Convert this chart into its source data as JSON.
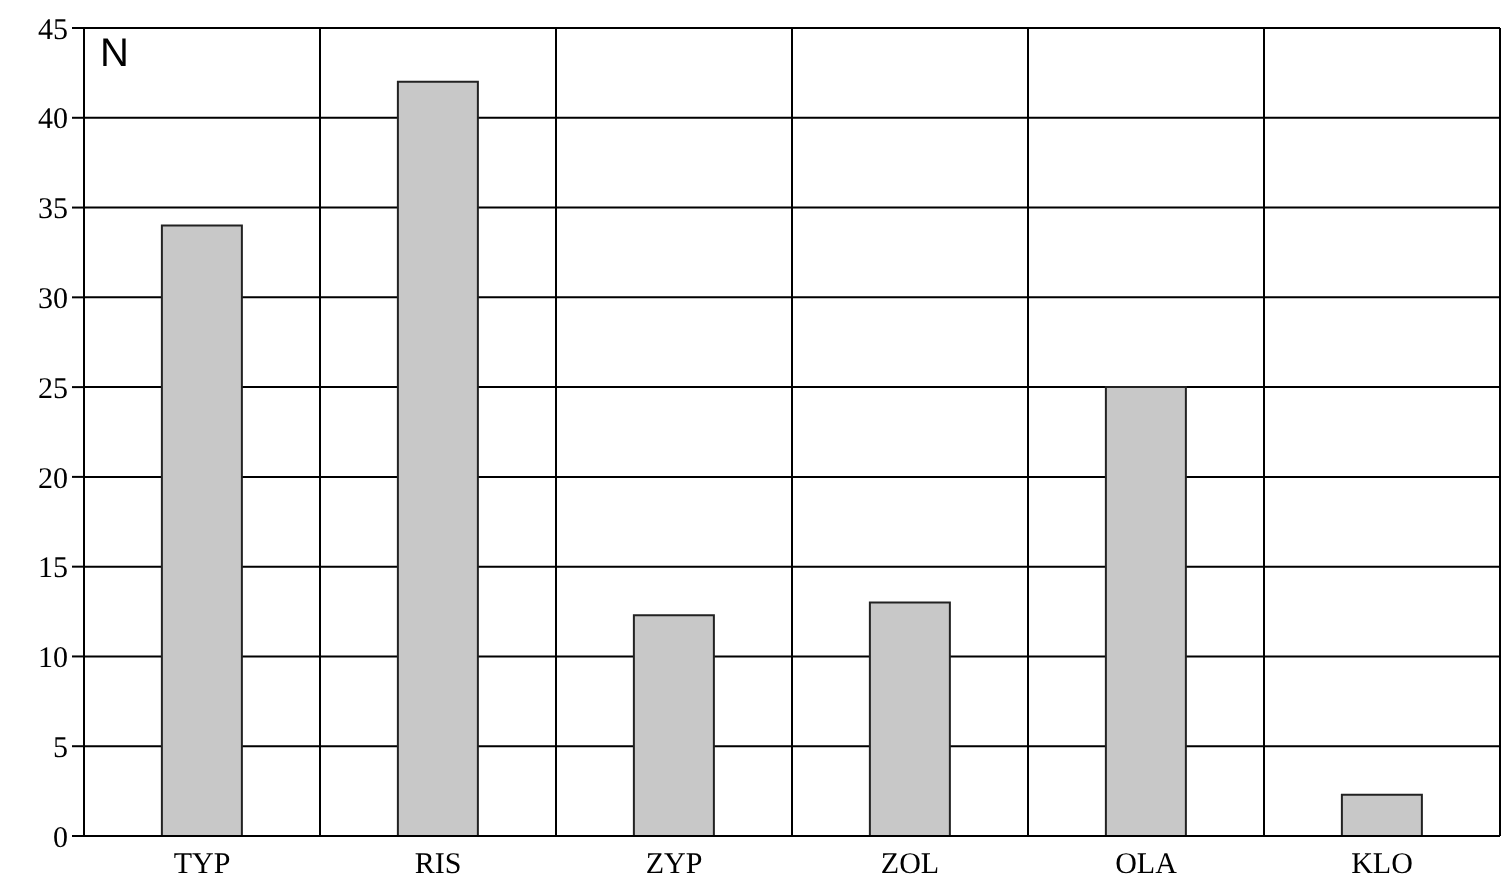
{
  "chart_data": {
    "type": "bar",
    "ylabel": "N",
    "categories": [
      "TYP",
      "RIS",
      "ZYP",
      "ZOL",
      "OLA",
      "KLO"
    ],
    "values": [
      34,
      42,
      12.3,
      13,
      25,
      2.3
    ],
    "color": "#c8c8c8",
    "ylim": [
      0,
      45
    ],
    "yticks": [
      0,
      5,
      10,
      15,
      20,
      25,
      30,
      35,
      40,
      45
    ],
    "grid": true
  }
}
